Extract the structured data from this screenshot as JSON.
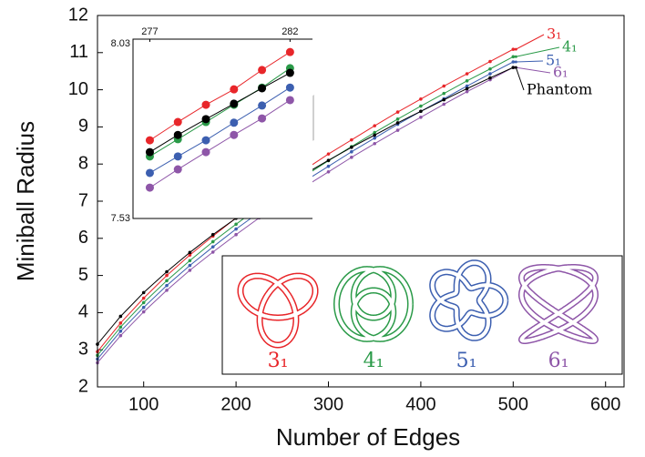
{
  "chart_data": {
    "type": "line",
    "x_label": "Number of Edges",
    "y_label": "Miniball Radius",
    "x": [
      50,
      75,
      100,
      125,
      150,
      175,
      200,
      225,
      250,
      275,
      300,
      325,
      350,
      375,
      400,
      425,
      450,
      475,
      500
    ],
    "series": [
      {
        "name": "3₁",
        "color": "#e8262a",
        "values": [
          2.95,
          3.72,
          4.39,
          5.0,
          5.55,
          6.06,
          6.55,
          7.0,
          7.44,
          7.86,
          8.27,
          8.65,
          9.03,
          9.4,
          9.75,
          10.1,
          10.43,
          10.76,
          11.09
        ]
      },
      {
        "name": "4₁",
        "color": "#2a9a48",
        "values": [
          2.85,
          3.61,
          4.27,
          4.86,
          5.4,
          5.91,
          6.38,
          6.84,
          7.27,
          7.69,
          8.09,
          8.47,
          8.85,
          9.21,
          9.56,
          9.9,
          10.24,
          10.56,
          10.89
        ]
      },
      {
        "name": "5₁",
        "color": "#3c5fb0",
        "values": [
          2.75,
          3.5,
          4.14,
          4.73,
          5.27,
          5.77,
          6.25,
          6.7,
          7.13,
          7.55,
          7.94,
          8.33,
          8.7,
          9.07,
          9.42,
          9.76,
          10.1,
          10.43,
          10.75
        ]
      },
      {
        "name": "6₁",
        "color": "#8e56a8",
        "values": [
          2.65,
          3.38,
          4.02,
          4.6,
          5.14,
          5.63,
          6.1,
          6.55,
          6.98,
          7.4,
          7.79,
          8.18,
          8.55,
          8.91,
          9.26,
          9.61,
          9.95,
          10.27,
          10.6
        ]
      },
      {
        "name": "Phantom",
        "color": "#000000",
        "values": [
          3.15,
          3.9,
          4.54,
          5.1,
          5.62,
          6.1,
          6.54,
          6.96,
          7.36,
          7.74,
          8.1,
          8.45,
          8.78,
          9.11,
          9.42,
          9.73,
          10.03,
          10.32,
          10.6
        ]
      }
    ],
    "xlim": [
      50,
      620
    ],
    "ylim": [
      2,
      12
    ],
    "xticks": [
      100,
      200,
      300,
      400,
      500,
      600
    ],
    "yticks": [
      2,
      3,
      4,
      5,
      6,
      7,
      8,
      9,
      10,
      11,
      12
    ],
    "inset": {
      "x": [
        277,
        278,
        279,
        280,
        281,
        282
      ],
      "series": [
        {
          "color": "#e8262a",
          "values": [
            7.748,
            7.799,
            7.847,
            7.89,
            7.944,
            7.994
          ]
        },
        {
          "color": "#2a9a48",
          "values": [
            7.703,
            7.751,
            7.799,
            7.847,
            7.895,
            7.949
          ]
        },
        {
          "color": "#3c5fb0",
          "values": [
            7.657,
            7.703,
            7.748,
            7.797,
            7.845,
            7.895
          ]
        },
        {
          "color": "#8e56a8",
          "values": [
            7.616,
            7.667,
            7.715,
            7.763,
            7.809,
            7.86
          ]
        },
        {
          "color": "#000000",
          "values": [
            7.715,
            7.763,
            7.807,
            7.85,
            7.893,
            7.936
          ]
        }
      ],
      "xlim": [
        276.4,
        282.8
      ],
      "ylim": [
        7.53,
        8.03
      ],
      "xticks": [
        277,
        282
      ],
      "yticks": [
        7.53,
        8.03
      ]
    }
  }
}
